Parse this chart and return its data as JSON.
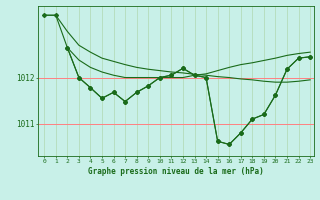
{
  "background_color": "#c8f0e8",
  "line_color": "#1a6b1a",
  "grid_color_v": "#b0d8b0",
  "grid_color_h": "#ff8080",
  "xlabel": "Graphe pression niveau de la mer (hPa)",
  "xlim": [
    -0.5,
    23.3
  ],
  "ylim": [
    1010.3,
    1013.55
  ],
  "yticks": [
    1011,
    1012
  ],
  "xticks": [
    0,
    1,
    2,
    3,
    4,
    5,
    6,
    7,
    8,
    9,
    10,
    11,
    12,
    13,
    14,
    15,
    16,
    17,
    18,
    19,
    20,
    21,
    22,
    23
  ],
  "line_A_x": [
    0,
    1,
    2,
    3,
    4,
    5,
    6,
    7,
    8,
    9,
    10,
    11,
    12,
    13,
    14,
    15,
    16,
    17,
    18,
    19,
    20,
    21,
    22,
    23
  ],
  "line_A_y": [
    1013.35,
    1013.35,
    1013.0,
    1012.7,
    1012.55,
    1012.42,
    1012.35,
    1012.28,
    1012.22,
    1012.18,
    1012.15,
    1012.12,
    1012.1,
    1012.07,
    1012.05,
    1012.02,
    1012.0,
    1011.97,
    1011.95,
    1011.92,
    1011.9,
    1011.9,
    1011.92,
    1011.95
  ],
  "line_B_x": [
    2,
    3,
    4,
    5,
    6,
    7,
    8,
    9,
    10,
    11,
    12,
    13,
    14,
    15,
    16,
    17,
    18,
    19,
    20,
    21,
    22,
    23
  ],
  "line_B_y": [
    1012.65,
    1012.38,
    1012.22,
    1012.12,
    1012.05,
    1012.0,
    1012.0,
    1012.0,
    1012.0,
    1012.0,
    1012.0,
    1012.05,
    1012.08,
    1012.15,
    1012.22,
    1012.28,
    1012.32,
    1012.37,
    1012.42,
    1012.48,
    1012.52,
    1012.55
  ],
  "line_C_x": [
    0,
    1,
    2,
    3,
    4,
    5,
    6,
    7,
    8,
    9,
    10,
    11,
    12,
    13,
    14,
    15,
    16,
    17,
    18,
    19,
    20,
    21,
    22,
    23
  ],
  "line_C_y": [
    1013.35,
    1013.35,
    1012.65,
    1012.0,
    1011.78,
    1011.55,
    1011.68,
    1011.48,
    1011.68,
    1011.82,
    1012.0,
    1012.05,
    1012.2,
    1012.05,
    1012.0,
    1010.62,
    1010.55,
    1010.8,
    1011.1,
    1011.2,
    1011.62,
    1012.18,
    1012.42,
    1012.45
  ],
  "line_D_x": [
    2,
    3,
    4,
    5,
    6,
    7,
    8,
    9,
    10,
    11,
    12,
    13,
    14,
    15,
    16,
    17,
    18,
    19,
    20,
    21,
    22,
    23
  ],
  "line_D_y": [
    1012.65,
    1012.0,
    1011.78,
    1011.55,
    1011.68,
    1011.48,
    1011.68,
    1011.82,
    1012.0,
    1012.05,
    1012.2,
    1012.05,
    1012.0,
    1010.62,
    1010.55,
    1010.8,
    1011.1,
    1011.2,
    1011.62,
    1012.18,
    1012.42,
    1012.45
  ]
}
